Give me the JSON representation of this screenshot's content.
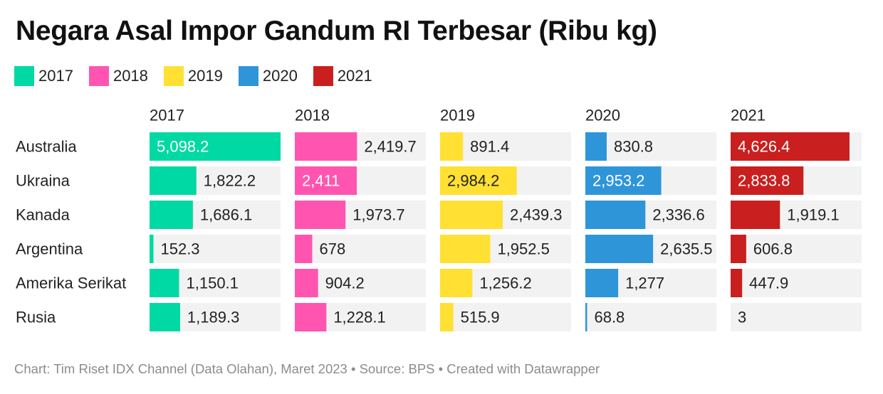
{
  "title": "Negara Asal Impor Gandum RI Terbesar (Ribu kg)",
  "footer": "Chart: Tim Riset IDX Channel (Data Olahan), Maret 2023 • Source: BPS • Created with Datawrapper",
  "colors": {
    "background_bar": "#f2f2f2",
    "series": [
      "#00d9a3",
      "#ff55b0",
      "#ffe033",
      "#2f95d9",
      "#c91f1f"
    ]
  },
  "chart_data": {
    "type": "bar",
    "title": "Negara Asal Impor Gandum RI Terbesar (Ribu kg)",
    "layout": "small-multiples",
    "categories": [
      "Australia",
      "Ukraina",
      "Kanada",
      "Argentina",
      "Amerika Serikat",
      "Rusia"
    ],
    "xlim": [
      0,
      5098.2
    ],
    "legend_position": "top-left",
    "series": [
      {
        "name": "2017",
        "color": "#00d9a3",
        "values": [
          5098.2,
          1822.2,
          1686.1,
          152.3,
          1150.1,
          1189.3
        ],
        "labels": [
          "5,098.2",
          "1,822.2",
          "1,686.1",
          "152.3",
          "1,150.1",
          "1,189.3"
        ]
      },
      {
        "name": "2018",
        "color": "#ff55b0",
        "values": [
          2419.7,
          2411,
          1973.7,
          678,
          904.2,
          1228.1
        ],
        "labels": [
          "2,419.7",
          "2,411",
          "1,973.7",
          "678",
          "904.2",
          "1,228.1"
        ]
      },
      {
        "name": "2019",
        "color": "#ffe033",
        "values": [
          891.4,
          2984.2,
          2439.3,
          1952.5,
          1256.2,
          515.9
        ],
        "labels": [
          "891.4",
          "2,984.2",
          "2,439.3",
          "1,952.5",
          "1,256.2",
          "515.9"
        ]
      },
      {
        "name": "2020",
        "color": "#2f95d9",
        "values": [
          830.8,
          2953.2,
          2336.6,
          2635.5,
          1277,
          68.8
        ],
        "labels": [
          "830.8",
          "2,953.2",
          "2,336.6",
          "2,635.5",
          "1,277",
          "68.8"
        ]
      },
      {
        "name": "2021",
        "color": "#c91f1f",
        "values": [
          4626.4,
          2833.8,
          1919.1,
          606.8,
          447.9,
          3
        ],
        "labels": [
          "4,626.4",
          "2,833.8",
          "1,919.1",
          "606.8",
          "447.9",
          "3"
        ]
      }
    ]
  }
}
